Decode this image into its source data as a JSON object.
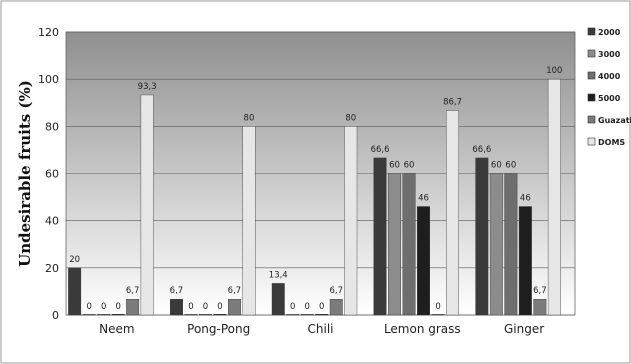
{
  "chart_data": {
    "type": "bar",
    "title": "",
    "xlabel": "",
    "ylabel": "Undesirable fruits (%)",
    "ylim": [
      0,
      120
    ],
    "yticks": [
      "0",
      "20",
      "40",
      "60",
      "80",
      "100",
      "120"
    ],
    "categories": [
      "Neem",
      "Pong-Pong",
      "Chili",
      "Lemon grass",
      "Ginger"
    ],
    "grid": true,
    "legend_position": "right",
    "series": [
      {
        "name": "2000",
        "color": "#3a3a3a",
        "values": [
          20,
          6.7,
          13.4,
          66.6,
          66.6
        ],
        "labels": [
          "20",
          "6,7",
          "13,4",
          "66,6",
          "66,6"
        ]
      },
      {
        "name": "3000",
        "color": "#8c8c8c",
        "values": [
          0,
          0,
          0,
          60,
          60
        ],
        "labels": [
          "0",
          "0",
          "0",
          "60",
          "60"
        ]
      },
      {
        "name": "4000",
        "color": "#6e6e6e",
        "values": [
          0,
          0,
          0,
          60,
          60
        ],
        "labels": [
          "0",
          "0",
          "0",
          "60",
          "60"
        ]
      },
      {
        "name": "5000",
        "color": "#1e1e1e",
        "values": [
          0,
          0,
          0,
          46,
          46
        ],
        "labels": [
          "0",
          "0",
          "0",
          "46",
          "46"
        ]
      },
      {
        "name": "Guazatine",
        "color": "#7b7b7b",
        "values": [
          6.7,
          6.7,
          6.7,
          0,
          6.7
        ],
        "labels": [
          "6,7",
          "6,7",
          "6,7",
          "0",
          "6,7"
        ]
      },
      {
        "name": "DOMS",
        "color": "#e6e6e6",
        "values": [
          93.3,
          80,
          80,
          86.7,
          100
        ],
        "labels": [
          "93,3",
          "80",
          "80",
          "86,7",
          "100"
        ]
      }
    ]
  }
}
